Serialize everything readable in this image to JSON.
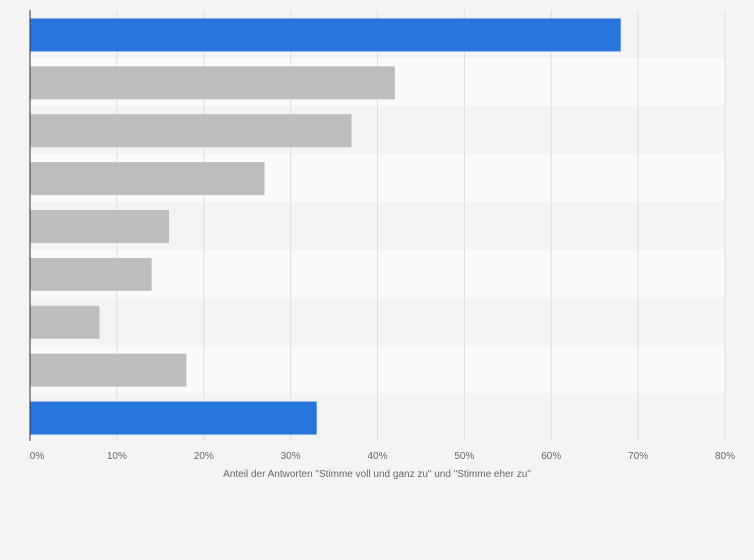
{
  "chart_data": {
    "type": "bar",
    "orientation": "horizontal",
    "categories": [
      "",
      "",
      "",
      "",
      "",
      "",
      "",
      "",
      ""
    ],
    "values": [
      68,
      42,
      37,
      27,
      16,
      14,
      8,
      18,
      33
    ],
    "highlight": [
      true,
      false,
      false,
      false,
      false,
      false,
      false,
      false,
      true
    ],
    "xlabel": "Anteil der Antworten \"Stimme voll und ganz zu\" und \"Stimme eher zu\"",
    "xlim": [
      0,
      80
    ],
    "xticks": [
      0,
      10,
      20,
      30,
      40,
      50,
      60,
      70,
      80
    ],
    "xtick_labels": [
      "0%",
      "10%",
      "20%",
      "30%",
      "40%",
      "50%",
      "60%",
      "70%",
      "80%"
    ],
    "grid": true,
    "colors": {
      "highlight": "#2775dd",
      "default": "#bdbdbd",
      "background": "#f4f4f4",
      "band_light": "#fafafa",
      "band_dark": "#f3f3f3",
      "grid": "#dddddd",
      "axis": "#333333",
      "text": "#666666"
    }
  }
}
